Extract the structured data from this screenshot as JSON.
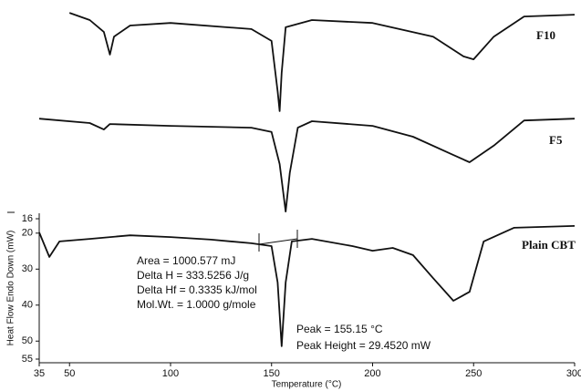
{
  "chart_data": {
    "type": "line",
    "x_label": "Temperature (°C)",
    "y_label": "Heat Flow Endo Down (mW)",
    "xlim": [
      35,
      300
    ],
    "xticks": [
      35,
      50,
      100,
      150,
      200,
      250,
      300
    ],
    "ylim": [
      55,
      16
    ],
    "yticks": [
      16,
      20,
      30,
      40,
      50,
      55
    ],
    "series": [
      {
        "name": "F10",
        "color": "#111111",
        "x": [
          50,
          60,
          67,
          70,
          72,
          80,
          100,
          140,
          150,
          153,
          154,
          155,
          157,
          170,
          200,
          230,
          245,
          250,
          260,
          275,
          300
        ],
        "values": [
          -41.2,
          -39.2,
          -35.9,
          -29.6,
          -34.6,
          -37.7,
          -38.4,
          -36.7,
          -33.4,
          -19.4,
          -13.9,
          -24.5,
          -37.2,
          -39.2,
          -38.4,
          -34.6,
          -29.1,
          -28.3,
          -34.6,
          -40.2,
          -40.7
        ]
      },
      {
        "name": "F5",
        "color": "#111111",
        "x": [
          35,
          60,
          67,
          70,
          100,
          140,
          150,
          154,
          157,
          159,
          163,
          170,
          200,
          220,
          240,
          248,
          260,
          275,
          300
        ],
        "values": [
          -11.8,
          -10.6,
          -8.8,
          -10.3,
          -9.8,
          -9.3,
          -8.1,
          0.8,
          14.0,
          3.3,
          -9.3,
          -11.1,
          -9.8,
          -6.8,
          -1.7,
          0.3,
          -4.3,
          -11.3,
          -11.8
        ]
      },
      {
        "name": "Plain CBT",
        "color": "#111111",
        "x": [
          35,
          40,
          45,
          60,
          80,
          100,
          120,
          140,
          150,
          153,
          155,
          157,
          160,
          170,
          190,
          200,
          210,
          220,
          230,
          240,
          248,
          255,
          270,
          300
        ],
        "values": [
          19.8,
          26.6,
          22.3,
          21.6,
          20.6,
          21.1,
          21.8,
          22.8,
          23.6,
          33.7,
          51.4,
          33.7,
          22.3,
          21.6,
          23.6,
          24.9,
          24.1,
          26.1,
          32.5,
          38.8,
          36.3,
          22.3,
          18.5,
          18.0
        ]
      }
    ],
    "annotations": [
      "Area = 1000.577 mJ",
      "Delta H = 333.5256 J/g",
      "Delta Hf = 0.3335 kJ/mol",
      "Mol.Wt. = 1.0000 g/mole",
      "Peak = 155.15 °C",
      "Peak Height = 29.4520 mW"
    ]
  }
}
